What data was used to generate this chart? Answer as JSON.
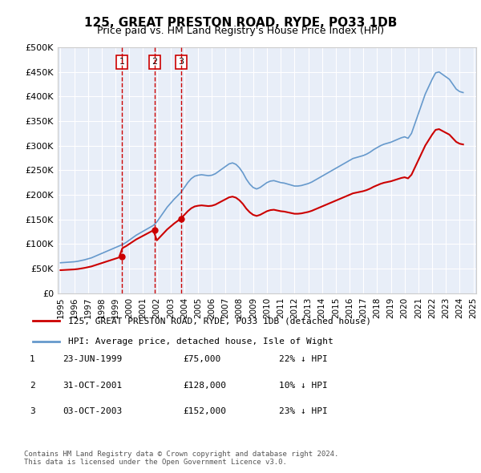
{
  "title": "125, GREAT PRESTON ROAD, RYDE, PO33 1DB",
  "subtitle": "Price paid vs. HM Land Registry's House Price Index (HPI)",
  "background_color": "#e8eef8",
  "plot_bg_color": "#e8eef8",
  "ylim": [
    0,
    500000
  ],
  "yticks": [
    0,
    50000,
    100000,
    150000,
    200000,
    250000,
    300000,
    350000,
    400000,
    450000,
    500000
  ],
  "ytick_labels": [
    "£0",
    "£50K",
    "£100K",
    "£150K",
    "£200K",
    "£250K",
    "£300K",
    "£350K",
    "£400K",
    "£450K",
    "£500K"
  ],
  "sale_dates": [
    1999.47,
    2001.83,
    2003.75
  ],
  "sale_prices": [
    75000,
    128000,
    152000
  ],
  "sale_labels": [
    "1",
    "2",
    "3"
  ],
  "vline_color": "#cc0000",
  "vline_style": "--",
  "marker_box_color": "#cc0000",
  "hpi_line_color": "#6699cc",
  "sale_line_color": "#cc0000",
  "legend_entry1": "125, GREAT PRESTON ROAD, RYDE, PO33 1DB (detached house)",
  "legend_entry2": "HPI: Average price, detached house, Isle of Wight",
  "table_rows": [
    [
      "1",
      "23-JUN-1999",
      "£75,000",
      "22% ↓ HPI"
    ],
    [
      "2",
      "31-OCT-2001",
      "£128,000",
      "10% ↓ HPI"
    ],
    [
      "3",
      "03-OCT-2003",
      "£152,000",
      "23% ↓ HPI"
    ]
  ],
  "footer": "Contains HM Land Registry data © Crown copyright and database right 2024.\nThis data is licensed under the Open Government Licence v3.0.",
  "hpi_data": {
    "years": [
      1995.0,
      1995.25,
      1995.5,
      1995.75,
      1996.0,
      1996.25,
      1996.5,
      1996.75,
      1997.0,
      1997.25,
      1997.5,
      1997.75,
      1998.0,
      1998.25,
      1998.5,
      1998.75,
      1999.0,
      1999.25,
      1999.5,
      1999.75,
      2000.0,
      2000.25,
      2000.5,
      2000.75,
      2001.0,
      2001.25,
      2001.5,
      2001.75,
      2002.0,
      2002.25,
      2002.5,
      2002.75,
      2003.0,
      2003.25,
      2003.5,
      2003.75,
      2004.0,
      2004.25,
      2004.5,
      2004.75,
      2005.0,
      2005.25,
      2005.5,
      2005.75,
      2006.0,
      2006.25,
      2006.5,
      2006.75,
      2007.0,
      2007.25,
      2007.5,
      2007.75,
      2008.0,
      2008.25,
      2008.5,
      2008.75,
      2009.0,
      2009.25,
      2009.5,
      2009.75,
      2010.0,
      2010.25,
      2010.5,
      2010.75,
      2011.0,
      2011.25,
      2011.5,
      2011.75,
      2012.0,
      2012.25,
      2012.5,
      2012.75,
      2013.0,
      2013.25,
      2013.5,
      2013.75,
      2014.0,
      2014.25,
      2014.5,
      2014.75,
      2015.0,
      2015.25,
      2015.5,
      2015.75,
      2016.0,
      2016.25,
      2016.5,
      2016.75,
      2017.0,
      2017.25,
      2017.5,
      2017.75,
      2018.0,
      2018.25,
      2018.5,
      2018.75,
      2019.0,
      2019.25,
      2019.5,
      2019.75,
      2020.0,
      2020.25,
      2020.5,
      2020.75,
      2021.0,
      2021.25,
      2021.5,
      2021.75,
      2022.0,
      2022.25,
      2022.5,
      2022.75,
      2023.0,
      2023.25,
      2023.5,
      2023.75,
      2024.0,
      2024.25
    ],
    "values": [
      62000,
      62500,
      63000,
      63500,
      64000,
      65000,
      66500,
      68000,
      70000,
      72000,
      75000,
      78000,
      81000,
      84000,
      87000,
      90000,
      93000,
      96000,
      99000,
      103000,
      108000,
      113000,
      118000,
      122000,
      126000,
      130000,
      134000,
      138000,
      145000,
      155000,
      165000,
      175000,
      183000,
      191000,
      198000,
      205000,
      215000,
      225000,
      233000,
      238000,
      240000,
      241000,
      240000,
      239000,
      240000,
      243000,
      248000,
      253000,
      258000,
      263000,
      265000,
      262000,
      255000,
      245000,
      232000,
      222000,
      215000,
      212000,
      215000,
      220000,
      225000,
      228000,
      229000,
      227000,
      225000,
      224000,
      222000,
      220000,
      218000,
      218000,
      219000,
      221000,
      223000,
      226000,
      230000,
      234000,
      238000,
      242000,
      246000,
      250000,
      254000,
      258000,
      262000,
      266000,
      270000,
      274000,
      276000,
      278000,
      280000,
      283000,
      287000,
      292000,
      296000,
      300000,
      303000,
      305000,
      307000,
      310000,
      313000,
      316000,
      318000,
      315000,
      325000,
      345000,
      365000,
      385000,
      405000,
      420000,
      435000,
      448000,
      450000,
      445000,
      440000,
      435000,
      425000,
      415000,
      410000,
      408000
    ]
  },
  "hpi_indexed_data": {
    "years": [
      1999.47,
      2001.83,
      2003.75,
      2004.0,
      2005.0,
      2006.0,
      2007.0,
      2008.0,
      2009.0,
      2010.0,
      2011.0,
      2012.0,
      2013.0,
      2014.0,
      2015.0,
      2016.0,
      2017.0,
      2018.0,
      2019.0,
      2020.0,
      2021.0,
      2022.0,
      2023.0,
      2024.0
    ],
    "values": [
      75000,
      128000,
      152000,
      165000,
      178000,
      185000,
      192000,
      183000,
      163000,
      168000,
      165000,
      160000,
      162000,
      168000,
      173000,
      180000,
      188000,
      197000,
      205000,
      213000,
      255000,
      295000,
      295000,
      278000
    ]
  }
}
